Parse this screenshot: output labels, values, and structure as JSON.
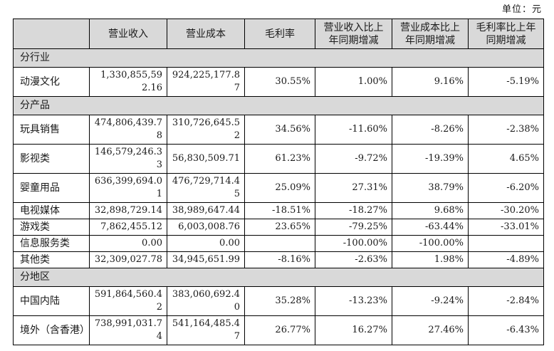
{
  "unit_label": "单位：元",
  "table": {
    "headers": [
      "",
      "营业收入",
      "营业成本",
      "毛利率",
      "营业收入比上年同期增减",
      "营业成本比上年同期增减",
      "毛利率比上年同期增减"
    ],
    "sections": [
      {
        "title": "分行业",
        "rows": [
          {
            "label": "动漫文化",
            "values": [
              "1,330,855,592.16",
              "924,225,177.87",
              "30.55%",
              "1.00%",
              "9.16%",
              "-5.19%"
            ]
          }
        ]
      },
      {
        "title": "分产品",
        "rows": [
          {
            "label": "玩具销售",
            "values": [
              "474,806,439.78",
              "310,726,645.52",
              "34.56%",
              "-11.60%",
              "-8.26%",
              "-2.38%"
            ]
          },
          {
            "label": "影视类",
            "values": [
              "146,579,246.33",
              "56,830,509.71",
              "61.23%",
              "-9.72%",
              "-19.39%",
              "4.65%"
            ]
          },
          {
            "label": "婴童用品",
            "values": [
              "636,399,694.01",
              "476,729,714.45",
              "25.09%",
              "27.31%",
              "38.79%",
              "-6.20%"
            ]
          },
          {
            "label": "电视媒体",
            "values": [
              "32,898,729.14",
              "38,989,647.44",
              "-18.51%",
              "-18.27%",
              "9.68%",
              "-30.20%"
            ]
          },
          {
            "label": "游戏类",
            "values": [
              "7,862,455.12",
              "6,003,008.76",
              "23.65%",
              "-79.25%",
              "-63.44%",
              "-33.01%"
            ]
          },
          {
            "label": "信息服务类",
            "values": [
              "0.00",
              "0.00",
              "",
              "-100.00%",
              "-100.00%",
              ""
            ]
          },
          {
            "label": "其他类",
            "values": [
              "32,309,027.78",
              "34,945,651.99",
              "-8.16%",
              "-2.63%",
              "1.98%",
              "-4.89%"
            ]
          }
        ]
      },
      {
        "title": "分地区",
        "rows": [
          {
            "label": "中国内陆",
            "values": [
              "591,864,560.42",
              "383,060,692.40",
              "35.28%",
              "-13.23%",
              "-9.24%",
              "-2.84%"
            ]
          },
          {
            "label": "境外（含香港）",
            "values": [
              "738,991,031.74",
              "541,164,485.47",
              "26.77%",
              "16.27%",
              "27.46%",
              "-6.43%"
            ]
          }
        ]
      }
    ]
  }
}
